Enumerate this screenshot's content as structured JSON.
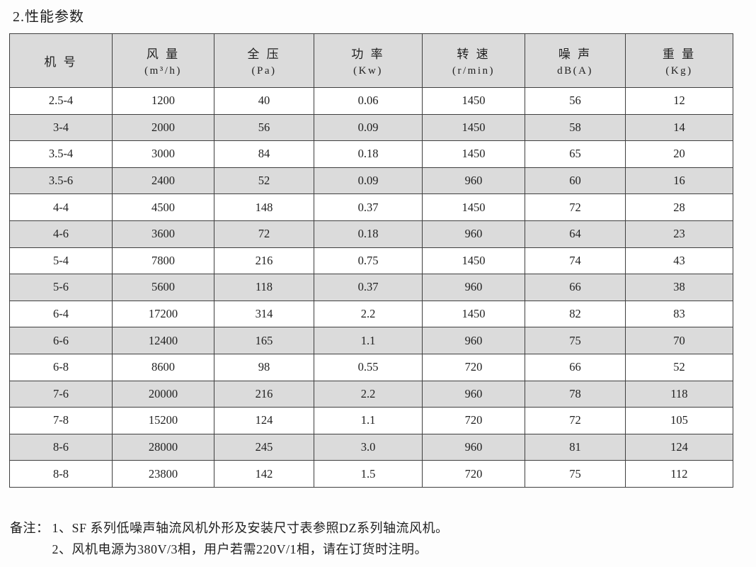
{
  "title": "2.性能参数",
  "colors": {
    "page-bg": "#fdfdfd",
    "header-bg": "#dbdbdb",
    "stripe": "#dbdbdb",
    "border": "#3f3f3f",
    "text": "#1f1f1f"
  },
  "table": {
    "columns": [
      {
        "line1": "机 号",
        "line2": ""
      },
      {
        "line1": "风 量",
        "line2": "(m³/h)"
      },
      {
        "line1": "全 压",
        "line2": "(Pa)"
      },
      {
        "line1": "功 率",
        "line2": "(Kw)"
      },
      {
        "line1": "转 速",
        "line2": "(r/min)"
      },
      {
        "line1": "噪 声",
        "line2": "dB(A)"
      },
      {
        "line1": "重 量",
        "line2": "(Kg)"
      }
    ],
    "rows": [
      [
        "2.5-4",
        "1200",
        "40",
        "0.06",
        "1450",
        "56",
        "12"
      ],
      [
        "3-4",
        "2000",
        "56",
        "0.09",
        "1450",
        "58",
        "14"
      ],
      [
        "3.5-4",
        "3000",
        "84",
        "0.18",
        "1450",
        "65",
        "20"
      ],
      [
        "3.5-6",
        "2400",
        "52",
        "0.09",
        "960",
        "60",
        "16"
      ],
      [
        "4-4",
        "4500",
        "148",
        "0.37",
        "1450",
        "72",
        "28"
      ],
      [
        "4-6",
        "3600",
        "72",
        "0.18",
        "960",
        "64",
        "23"
      ],
      [
        "5-4",
        "7800",
        "216",
        "0.75",
        "1450",
        "74",
        "43"
      ],
      [
        "5-6",
        "5600",
        "118",
        "0.37",
        "960",
        "66",
        "38"
      ],
      [
        "6-4",
        "17200",
        "314",
        "2.2",
        "1450",
        "82",
        "83"
      ],
      [
        "6-6",
        "12400",
        "165",
        "1.1",
        "960",
        "75",
        "70"
      ],
      [
        "6-8",
        "8600",
        "98",
        "0.55",
        "720",
        "66",
        "52"
      ],
      [
        "7-6",
        "20000",
        "216",
        "2.2",
        "960",
        "78",
        "118"
      ],
      [
        "7-8",
        "15200",
        "124",
        "1.1",
        "720",
        "72",
        "105"
      ],
      [
        "8-6",
        "28000",
        "245",
        "3.0",
        "960",
        "81",
        "124"
      ],
      [
        "8-8",
        "23800",
        "142",
        "1.5",
        "720",
        "75",
        "112"
      ]
    ]
  },
  "notes": {
    "label": "备注：",
    "items": [
      "1、SF 系列低噪声轴流风机外形及安装尺寸表参照DZ系列轴流风机。",
      "2、风机电源为380V/3相，用户若需220V/1相，请在订货时注明。"
    ]
  }
}
